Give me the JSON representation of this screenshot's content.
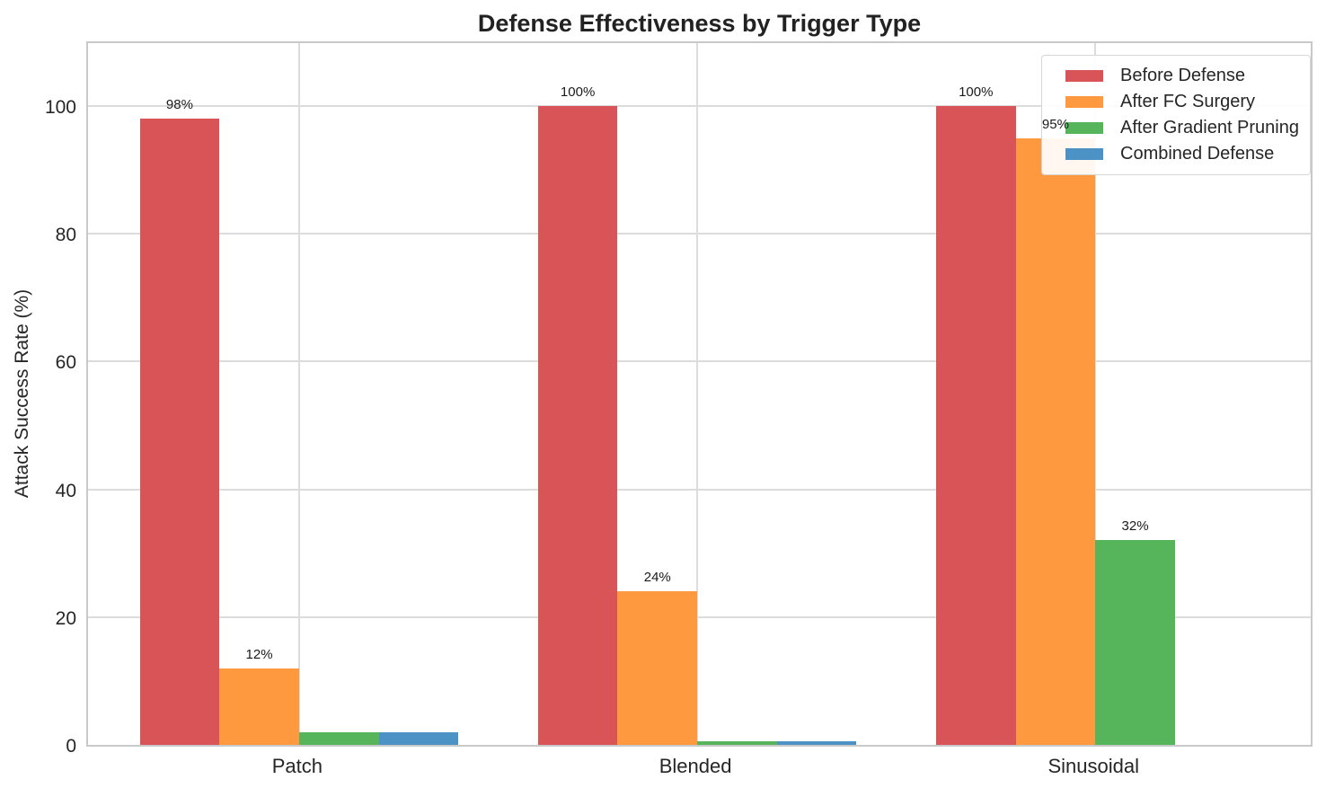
{
  "chart_data": {
    "type": "bar",
    "title": "Defense Effectiveness by Trigger Type",
    "xlabel": "",
    "ylabel": "Attack Success Rate (%)",
    "categories": [
      "Patch",
      "Blended",
      "Sinusoidal"
    ],
    "series": [
      {
        "name": "Before Defense",
        "color": "#d85456",
        "values": [
          98,
          100,
          100
        ],
        "labels": [
          "98%",
          "100%",
          "100%"
        ]
      },
      {
        "name": "After FC Surgery",
        "color": "#ff993f",
        "values": [
          12,
          24,
          95
        ],
        "labels": [
          "12%",
          "24%",
          "95%"
        ]
      },
      {
        "name": "After Gradient Pruning",
        "color": "#56b45a",
        "values": [
          2,
          0.5,
          32
        ],
        "labels": [
          "",
          "",
          "32%"
        ]
      },
      {
        "name": "Combined Defense",
        "color": "#4d92c4",
        "values": [
          2,
          0.5,
          0
        ],
        "labels": [
          "",
          "",
          ""
        ]
      }
    ],
    "yticks": [
      0,
      20,
      40,
      60,
      80,
      100
    ],
    "ylim": [
      0,
      110.4
    ],
    "grid": true,
    "legend_position": "upper right",
    "bar_width": 0.2,
    "colors": {
      "grid": "#dcdcdc",
      "spine": "#c9c9c9",
      "title_text": "#222222",
      "tick_text": "#262626"
    }
  }
}
